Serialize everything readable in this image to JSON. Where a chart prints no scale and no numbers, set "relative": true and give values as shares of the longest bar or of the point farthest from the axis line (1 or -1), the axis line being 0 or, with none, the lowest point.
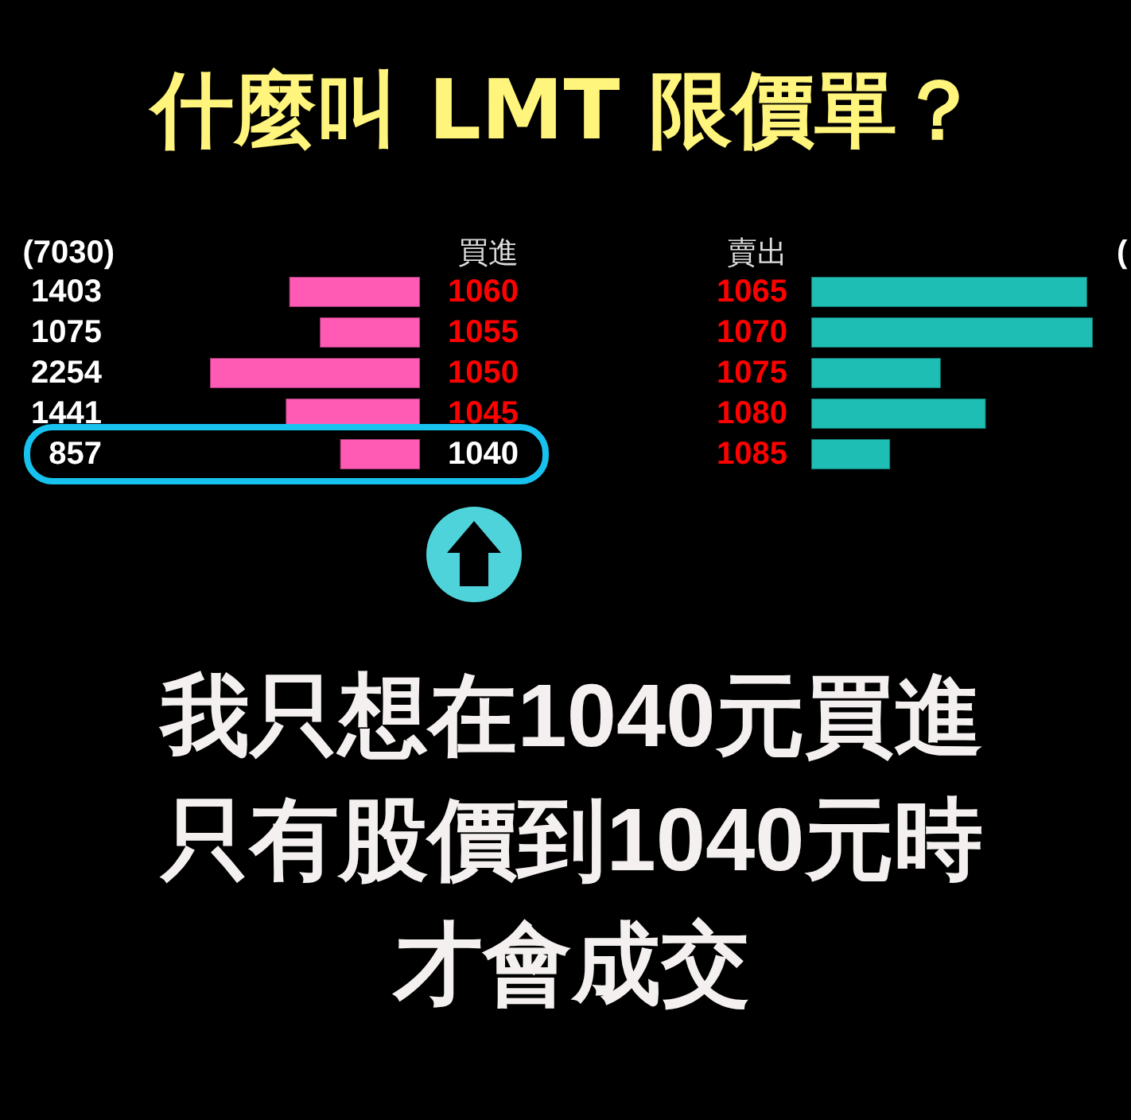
{
  "chart_data": [
    {
      "type": "bar",
      "orientation": "horizontal",
      "title": "什麼叫 LMT 限價單？",
      "ylabel": "買進",
      "categories": [
        "1060",
        "1055",
        "1050",
        "1045",
        "1040"
      ],
      "values": [
        1403,
        1075,
        2254,
        1441,
        857
      ],
      "color": "#ff5ab4",
      "data_labels": true,
      "tick_labels": "y",
      "annotations": [
        "(7030)",
        "我只想在1040元買進只有股價到1040元時才會成交"
      ]
    },
    {
      "type": "bar",
      "orientation": "horizontal",
      "relative": true,
      "ylabel": "賣出",
      "categories": [
        "1065",
        "1070",
        "1075",
        "1080",
        "1085"
      ],
      "values": [
        0.98,
        1,
        0.46,
        0.62,
        0.28
      ],
      "color": "#1ebeb4",
      "tick_labels": "y",
      "annotations": [
        "("
      ]
    }
  ]
}
